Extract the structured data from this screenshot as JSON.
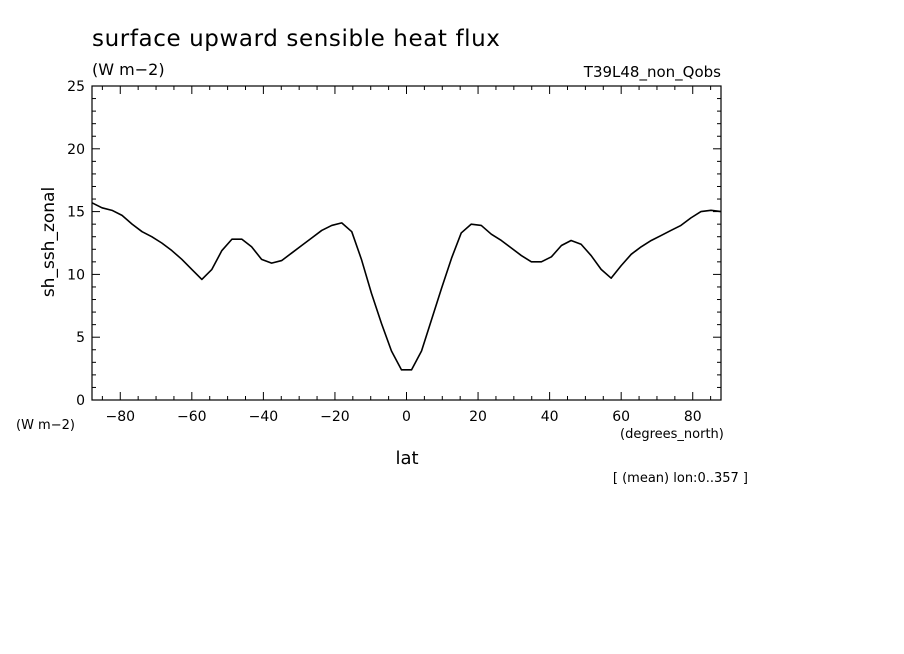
{
  "chart_data": {
    "type": "line",
    "title": "surface upward sensible heat flux",
    "units": "(W m−2)",
    "run_label": "T39L48_non_Qobs",
    "ylabel": "sh_ssh_zonal",
    "y_units": "(W m−2)",
    "xlabel": "lat",
    "x_units": "(degrees_north)",
    "footnote": "[ (mean) lon:0..357 ]",
    "xlim": [
      -87.9,
      87.9
    ],
    "ylim": [
      0,
      25
    ],
    "x_ticks": [
      -80,
      -60,
      -40,
      -20,
      0,
      20,
      40,
      60,
      80
    ],
    "x_tick_labels": [
      "−80",
      "−60",
      "−40",
      "−20",
      "0",
      "20",
      "40",
      "60",
      "80"
    ],
    "y_ticks": [
      0,
      5,
      10,
      15,
      20,
      25
    ],
    "y_tick_labels": [
      "0",
      "5",
      "10",
      "15",
      "20",
      "25"
    ],
    "grid": false,
    "series": [
      {
        "x": [
          -87.9,
          -85.1,
          -82.3,
          -79.5,
          -76.7,
          -73.9,
          -71.2,
          -68.4,
          -65.6,
          -62.8,
          -60.0,
          -57.2,
          -54.4,
          -51.6,
          -48.8,
          -46.0,
          -43.3,
          -40.5,
          -37.7,
          -34.9,
          -32.1,
          -29.3,
          -26.5,
          -23.7,
          -20.9,
          -18.1,
          -15.3,
          -12.6,
          -9.8,
          -7.0,
          -4.2,
          -1.4,
          1.4,
          4.2,
          7.0,
          9.8,
          12.6,
          15.3,
          18.1,
          20.9,
          23.7,
          26.5,
          29.3,
          32.1,
          34.9,
          37.7,
          40.5,
          43.3,
          46.0,
          48.8,
          51.6,
          54.4,
          57.2,
          60.0,
          62.8,
          65.6,
          68.4,
          71.2,
          73.9,
          76.7,
          79.5,
          82.3,
          85.1,
          87.9
        ],
        "y": [
          15.7,
          15.3,
          15.1,
          14.7,
          14.0,
          13.4,
          13.0,
          12.5,
          11.9,
          11.2,
          10.4,
          9.6,
          10.4,
          11.9,
          12.8,
          12.8,
          12.2,
          11.2,
          10.9,
          11.1,
          11.7,
          12.3,
          12.9,
          13.5,
          13.9,
          14.1,
          13.4,
          11.2,
          8.5,
          6.1,
          3.9,
          2.4,
          2.4,
          3.9,
          6.4,
          8.9,
          11.3,
          13.3,
          14.0,
          13.9,
          13.2,
          12.7,
          12.1,
          11.5,
          11.0,
          11.0,
          11.4,
          12.3,
          12.7,
          12.4,
          11.5,
          10.4,
          9.7,
          10.7,
          11.6,
          12.2,
          12.7,
          13.1,
          13.5,
          13.9,
          14.5,
          15.0,
          15.1,
          15.0
        ]
      }
    ]
  }
}
